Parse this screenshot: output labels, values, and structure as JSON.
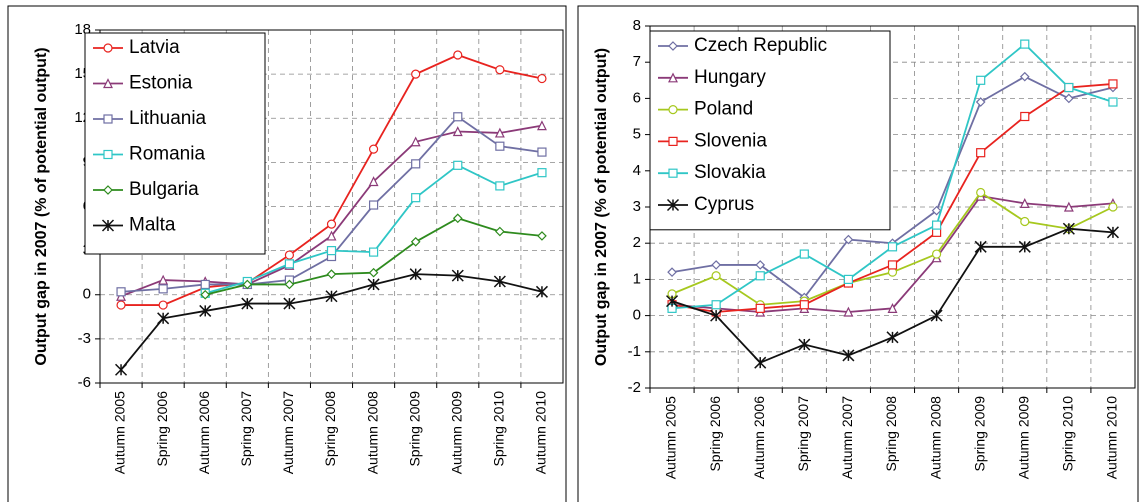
{
  "chart_data": [
    {
      "type": "line",
      "ylabel": "Output gap in 2007 (% of potential output)",
      "categories": [
        "Autumn 2005",
        "Spring 2006",
        "Autumn 2006",
        "Spring 2007",
        "Autumn 2007",
        "Spring 2008",
        "Autumn 2008",
        "Spring 2009",
        "Autumn 2009",
        "Spring 2010",
        "Autumn 2010"
      ],
      "ylim": [
        -6,
        18
      ],
      "yticks": [
        -6,
        -3,
        0,
        3,
        6,
        9,
        12,
        15,
        18
      ],
      "grid": true,
      "legend": "top-left",
      "series": [
        {
          "name": "Latvia",
          "color": "#e8231f",
          "marker": "circle",
          "values": [
            -0.7,
            -0.7,
            0.5,
            0.8,
            2.7,
            4.8,
            9.9,
            15.0,
            16.3,
            15.3,
            14.7
          ]
        },
        {
          "name": "Estonia",
          "color": "#8b3a78",
          "marker": "triangle",
          "values": [
            -0.1,
            1.0,
            0.9,
            0.7,
            2.0,
            4.0,
            7.7,
            10.4,
            11.1,
            11.0,
            11.5
          ]
        },
        {
          "name": "Lithuania",
          "color": "#6f6fa3",
          "marker": "square",
          "values": [
            0.2,
            0.4,
            0.7,
            0.7,
            1.0,
            2.6,
            6.1,
            8.9,
            12.1,
            10.1,
            9.7
          ]
        },
        {
          "name": "Romania",
          "color": "#2fc6c6",
          "marker": "square",
          "values": [
            null,
            null,
            0.1,
            0.9,
            2.1,
            3.0,
            2.9,
            6.6,
            8.8,
            7.4,
            8.3
          ]
        },
        {
          "name": "Bulgaria",
          "color": "#2e8b1e",
          "marker": "diamond",
          "values": [
            null,
            null,
            0.0,
            0.7,
            0.7,
            1.4,
            1.5,
            3.6,
            5.2,
            4.3,
            4.0
          ]
        },
        {
          "name": "Malta",
          "color": "#111111",
          "marker": "star",
          "values": [
            -5.1,
            -1.6,
            -1.1,
            -0.6,
            -0.6,
            -0.1,
            0.7,
            1.4,
            1.3,
            0.9,
            0.2
          ]
        }
      ]
    },
    {
      "type": "line",
      "ylabel": "Output gap in 2007 (% of potential output)",
      "categories": [
        "Autumn 2005",
        "Spring 2006",
        "Autumn 2006",
        "Spring 2007",
        "Autumn 2007",
        "Spring 2008",
        "Autumn 2008",
        "Spring 2009",
        "Autumn 2009",
        "Spring 2010",
        "Autumn 2010"
      ],
      "ylim": [
        -2,
        8
      ],
      "yticks": [
        -2,
        -1,
        0,
        1,
        2,
        3,
        4,
        5,
        6,
        7,
        8
      ],
      "grid": true,
      "legend": "top-left",
      "series": [
        {
          "name": "Czech Republic",
          "color": "#6f6fa3",
          "marker": "diamond",
          "values": [
            1.2,
            1.4,
            1.4,
            0.5,
            2.1,
            2.0,
            2.9,
            5.9,
            6.6,
            6.0,
            6.3
          ]
        },
        {
          "name": "Hungary",
          "color": "#8b3a78",
          "marker": "triangle",
          "values": [
            0.3,
            0.2,
            0.1,
            0.2,
            0.1,
            0.2,
            1.6,
            3.3,
            3.1,
            3.0,
            3.1
          ]
        },
        {
          "name": "Poland",
          "color": "#a6c81e",
          "marker": "circle",
          "values": [
            0.6,
            1.1,
            0.3,
            0.4,
            0.9,
            1.2,
            1.7,
            3.4,
            2.6,
            2.4,
            3.0
          ]
        },
        {
          "name": "Slovenia",
          "color": "#e8231f",
          "marker": "square",
          "values": [
            0.3,
            0.1,
            0.2,
            0.3,
            0.9,
            1.4,
            2.3,
            4.5,
            5.5,
            6.3,
            6.4
          ]
        },
        {
          "name": "Slovakia",
          "color": "#2fc6c6",
          "marker": "square",
          "values": [
            0.2,
            0.3,
            1.1,
            1.7,
            1.0,
            1.9,
            2.5,
            6.5,
            7.5,
            6.3,
            5.9
          ]
        },
        {
          "name": "Cyprus",
          "color": "#111111",
          "marker": "star",
          "values": [
            0.4,
            0.0,
            -1.3,
            -0.8,
            -1.1,
            -0.6,
            0.0,
            1.9,
            1.9,
            2.4,
            2.3
          ]
        }
      ]
    }
  ]
}
